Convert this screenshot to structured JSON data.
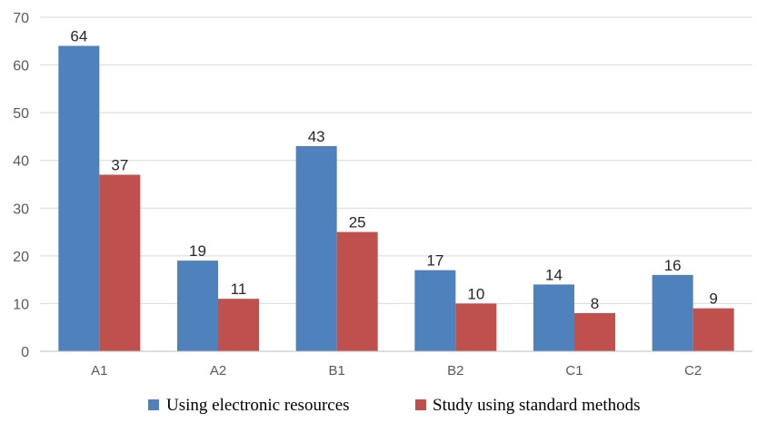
{
  "chart_data": {
    "type": "bar",
    "categories": [
      "A1",
      "A2",
      "B1",
      "B2",
      "C1",
      "C2"
    ],
    "series": [
      {
        "name": "Using electronic resources",
        "values": [
          64,
          19,
          43,
          17,
          14,
          16
        ],
        "color": "#4f81bd"
      },
      {
        "name": "Study using standard methods",
        "values": [
          37,
          11,
          25,
          10,
          8,
          9
        ],
        "color": "#c0504d"
      }
    ],
    "ylim": [
      0,
      70
    ],
    "yticks": [
      0,
      10,
      20,
      30,
      40,
      50,
      60,
      70
    ],
    "grid": true,
    "legend_position": "bottom",
    "data_labels": true
  }
}
